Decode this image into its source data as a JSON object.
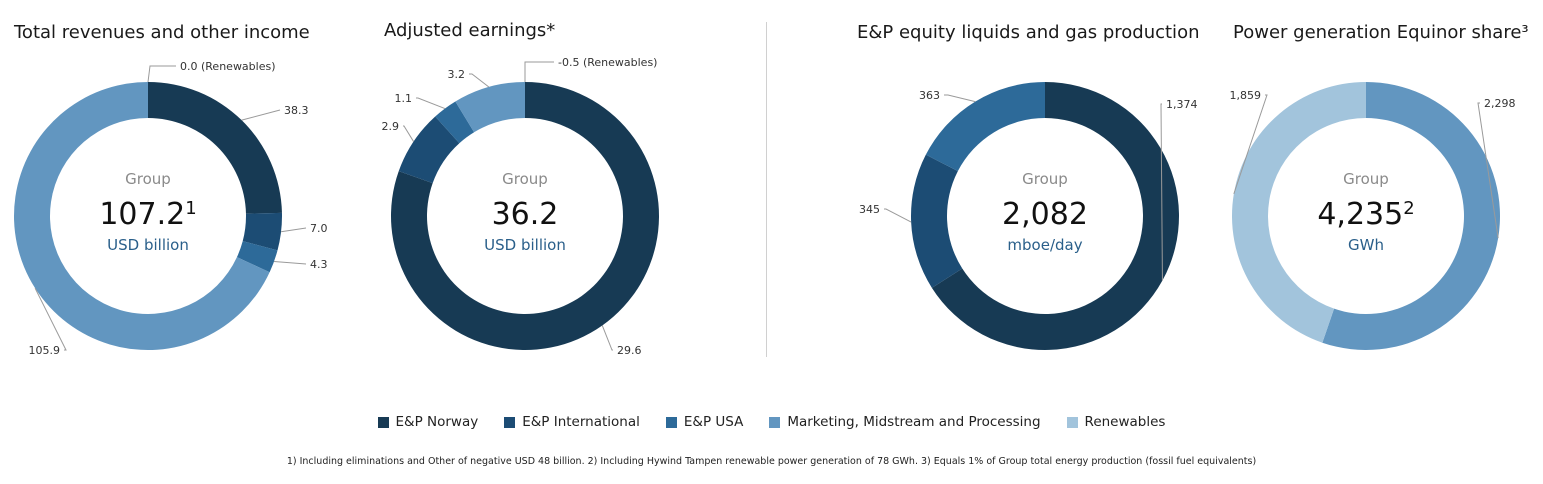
{
  "colors": {
    "ep_norway": "#173a54",
    "ep_international": "#1c4c74",
    "ep_usa": "#2d6a99",
    "mmp": "#6296c0",
    "renewables": "#a2c4dc"
  },
  "legend": [
    {
      "label": "E&P Norway",
      "color": "#173a54"
    },
    {
      "label": "E&P International",
      "color": "#1c4c74"
    },
    {
      "label": "E&P USA",
      "color": "#2d6a99"
    },
    {
      "label": "Marketing, Midstream and Processing",
      "color": "#6296c0"
    },
    {
      "label": "Renewables",
      "color": "#a2c4dc"
    }
  ],
  "footnote": "1) Including eliminations and Other of negative USD 48 billion. 2) Including Hywind Tampen renewable power generation of 78 GWh. 3) Equals 1% of Group total energy production (fossil fuel equivalents)",
  "chart_data": [
    {
      "type": "pie",
      "style": "donut",
      "title": "Total revenues and other income",
      "center": {
        "group": "Group",
        "total": "107.2",
        "sup": "1",
        "unit": "USD billion"
      },
      "slices": [
        {
          "name": "Renewables",
          "value": 0.0,
          "label": "0.0 (Renewables)"
        },
        {
          "name": "E&P Norway",
          "value": 38.3,
          "label": "38.3"
        },
        {
          "name": "E&P International",
          "value": 7.0,
          "label": "7.0"
        },
        {
          "name": "E&P USA",
          "value": 4.3,
          "label": "4.3"
        },
        {
          "name": "Marketing, Midstream and Processing",
          "value": 105.9,
          "label": "105.9"
        }
      ]
    },
    {
      "type": "pie",
      "style": "donut",
      "title": "Adjusted earnings*",
      "center": {
        "group": "Group",
        "total": "36.2",
        "sup": "",
        "unit": "USD billion"
      },
      "slices": [
        {
          "name": "Renewables",
          "value": -0.5,
          "label": "-0.5 (Renewables)"
        },
        {
          "name": "E&P Norway",
          "value": 29.6,
          "label": "29.6"
        },
        {
          "name": "E&P International",
          "value": 2.9,
          "label": "2.9"
        },
        {
          "name": "E&P USA",
          "value": 1.1,
          "label": "1.1"
        },
        {
          "name": "Marketing, Midstream and Processing",
          "value": 3.2,
          "label": "3.2"
        }
      ]
    },
    {
      "type": "pie",
      "style": "donut",
      "title": "E&P equity liquids and gas production",
      "center": {
        "group": "Group",
        "total": "2,082",
        "sup": "",
        "unit": "mboe/day"
      },
      "slices": [
        {
          "name": "E&P Norway",
          "value": 1374,
          "label": "1,374"
        },
        {
          "name": "E&P International",
          "value": 345,
          "label": "345"
        },
        {
          "name": "E&P USA",
          "value": 363,
          "label": "363"
        }
      ]
    },
    {
      "type": "pie",
      "style": "donut",
      "title": "Power generation Equinor share³",
      "center": {
        "group": "Group",
        "total": "4,235",
        "sup": "2",
        "unit": "GWh"
      },
      "slices": [
        {
          "name": "Marketing, Midstream and Processing",
          "value": 2298,
          "label": "2,298"
        },
        {
          "name": "Renewables",
          "value": 1859,
          "label": "1,859"
        }
      ]
    }
  ]
}
